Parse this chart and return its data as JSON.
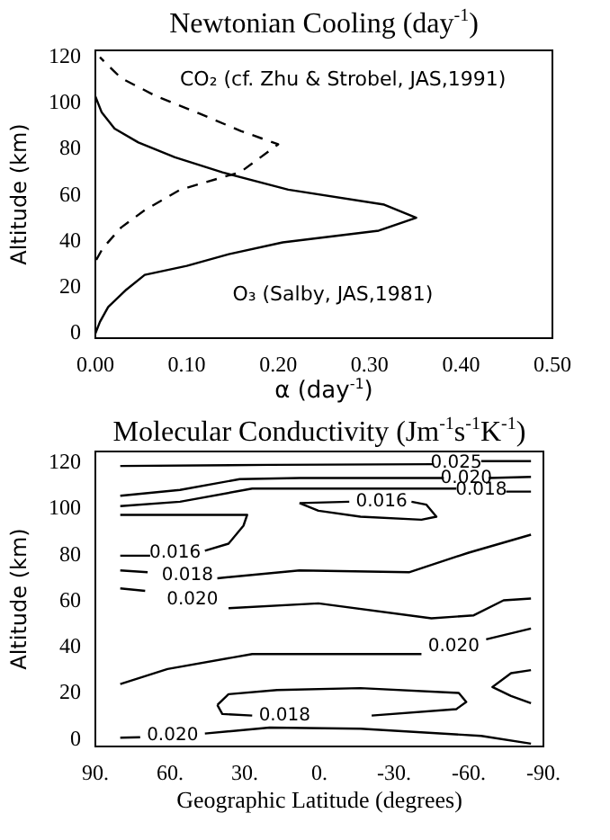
{
  "chart_data": [
    {
      "type": "line",
      "title": "Newtonian Cooling (day$^{-1}$)",
      "xlabel": "α (day$^{-1}$)",
      "ylabel": "Altitude (km)",
      "xlim": [
        0,
        0.5
      ],
      "xticks": [
        {
          "value": 0,
          "label": "0.00"
        },
        {
          "value": 0.1,
          "label": "0.10"
        },
        {
          "value": 0.2,
          "label": "0.20"
        },
        {
          "value": 0.3,
          "label": "0.30"
        },
        {
          "value": 0.4,
          "label": "0.40"
        },
        {
          "value": 0.5,
          "label": "0.50"
        }
      ],
      "ylim": [
        -2,
        123
      ],
      "yticks": [
        0,
        20,
        40,
        60,
        80,
        100,
        120
      ],
      "series": [
        {
          "name": "CO₂ (cf. Zhu & Strobel, JAS,1991)",
          "color": "#000000",
          "line_style": "dashed",
          "x": [
            0.001,
            0.008,
            0.028,
            0.054,
            0.093,
            0.159,
            0.2,
            0.159,
            0.113,
            0.067,
            0.028,
            0.005
          ],
          "values": [
            32,
            37,
            46,
            53.6,
            62.5,
            70.2,
            82.2,
            88,
            95.7,
            103,
            111,
            120
          ]
        },
        {
          "name": "O₃ (Salby, JAS,1981)",
          "color": "#000000",
          "line_style": "solid",
          "x": [
            0,
            0.005,
            0.014,
            0.034,
            0.054,
            0.1,
            0.146,
            0.205,
            0.31,
            0.351,
            0.316,
            0.211,
            0.139,
            0.087,
            0.047,
            0.021,
            0.007,
            0
          ],
          "values": [
            0,
            5.1,
            11.5,
            19.1,
            25.5,
            29.4,
            34.5,
            39.6,
            44.7,
            50.3,
            56,
            62.5,
            70,
            76.6,
            83,
            89,
            96,
            103
          ]
        }
      ]
    },
    {
      "type": "line",
      "title": "Molecular Conductivity (Jm$^{-1}$s$^{-1}$K$^{-1}$)",
      "xlabel": "Geographic Latitude (degrees)",
      "ylabel": "Altitude (km)",
      "xlim": [
        90,
        -90
      ],
      "xticks": [
        {
          "value": 90,
          "label": "90."
        },
        {
          "value": 60,
          "label": "60."
        },
        {
          "value": 30,
          "label": "30."
        },
        {
          "value": 0,
          "label": "0."
        },
        {
          "value": -30,
          "label": "-30."
        },
        {
          "value": -60,
          "label": "-60."
        },
        {
          "value": -90,
          "label": "-90."
        }
      ],
      "ylim": [
        -3,
        125
      ],
      "yticks": [
        0,
        20,
        40,
        60,
        80,
        100,
        120
      ],
      "series": [
        {
          "name": "0.025",
          "color": "#000000",
          "x": [
            80,
            20,
            -46,
            -55,
            -65,
            -85
          ],
          "values": [
            118.7,
            119.2,
            119.5,
            null,
            120.8,
            120.8
          ]
        },
        {
          "name": "0.020",
          "color": "#000000",
          "x": [
            80,
            56,
            32,
            8,
            -50,
            -59,
            -68,
            -85
          ],
          "values": [
            105.8,
            108.3,
            113,
            113.5,
            113.5,
            null,
            113.5,
            114
          ]
        },
        {
          "name": "0.018",
          "color": "#000000",
          "x": [
            80,
            56,
            27,
            -55,
            -65,
            -75,
            -85
          ],
          "values": [
            101.3,
            103.2,
            108.9,
            108.9,
            null,
            107.6,
            107.6
          ]
        },
        {
          "name": "0.016",
          "color": "#000000",
          "x": [
            80,
            29,
            30.5,
            36.5,
            46,
            58,
            68,
            80
          ],
          "values": [
            97.5,
            97.5,
            92.8,
            85,
            81.9,
            null,
            79.8,
            79.8
          ]
        },
        {
          "name": "0.016",
          "color": "#000000",
          "x": [
            8,
            -12,
            -25,
            -37,
            -43,
            -47,
            -41,
            -16.5,
            0.4,
            8
          ],
          "values": [
            102.6,
            103.2,
            null,
            103.2,
            101.9,
            96.7,
            95.4,
            96.7,
            99.3,
            102.6
          ]
        },
        {
          "name": "0.018",
          "color": "#000000",
          "x": [
            80,
            69,
            53,
            41,
            8,
            -36,
            -60,
            -85
          ],
          "values": [
            73.4,
            72.6,
            null,
            70,
            73.4,
            72.6,
            81.1,
            88.9
          ]
        },
        {
          "name": "0.020",
          "color": "#000000",
          "x": [
            80,
            70,
            51,
            36.5,
            0.4,
            -45,
            -62,
            -74,
            -85
          ],
          "values": [
            65.6,
            64.5,
            null,
            57,
            59.1,
            52.6,
            53.9,
            60.4,
            61.2
          ]
        },
        {
          "name": "0.020",
          "color": "#000000",
          "x": [
            80,
            61,
            27,
            -41,
            -54,
            -67,
            -85
          ],
          "values": [
            24.1,
            30.6,
            37.1,
            37.1,
            null,
            43.5,
            48.2
          ]
        },
        {
          "color": "#000000",
          "x": [
            -85,
            -77,
            -69.5,
            -77,
            -85
          ],
          "values": [
            30.1,
            28.8,
            22.8,
            18.9,
            15.8
          ]
        },
        {
          "name": "0.018",
          "color": "#000000",
          "x": [
            41,
            36.5,
            17,
            -16.5,
            -56,
            -59,
            -55,
            -21,
            14,
            27,
            39,
            41
          ],
          "values": [
            15,
            19.7,
            21.5,
            22.3,
            20.2,
            16.3,
            13.2,
            10.4,
            null,
            10.4,
            11.1,
            15
          ]
        },
        {
          "name": "0.020",
          "color": "#000000",
          "x": [
            80,
            72,
            59,
            46,
            20,
            -16.5,
            -65,
            -85
          ],
          "values": [
            0.8,
            1.0,
            null,
            2.6,
            5.2,
            4.7,
            1.6,
            -1.8
          ]
        }
      ]
    }
  ]
}
